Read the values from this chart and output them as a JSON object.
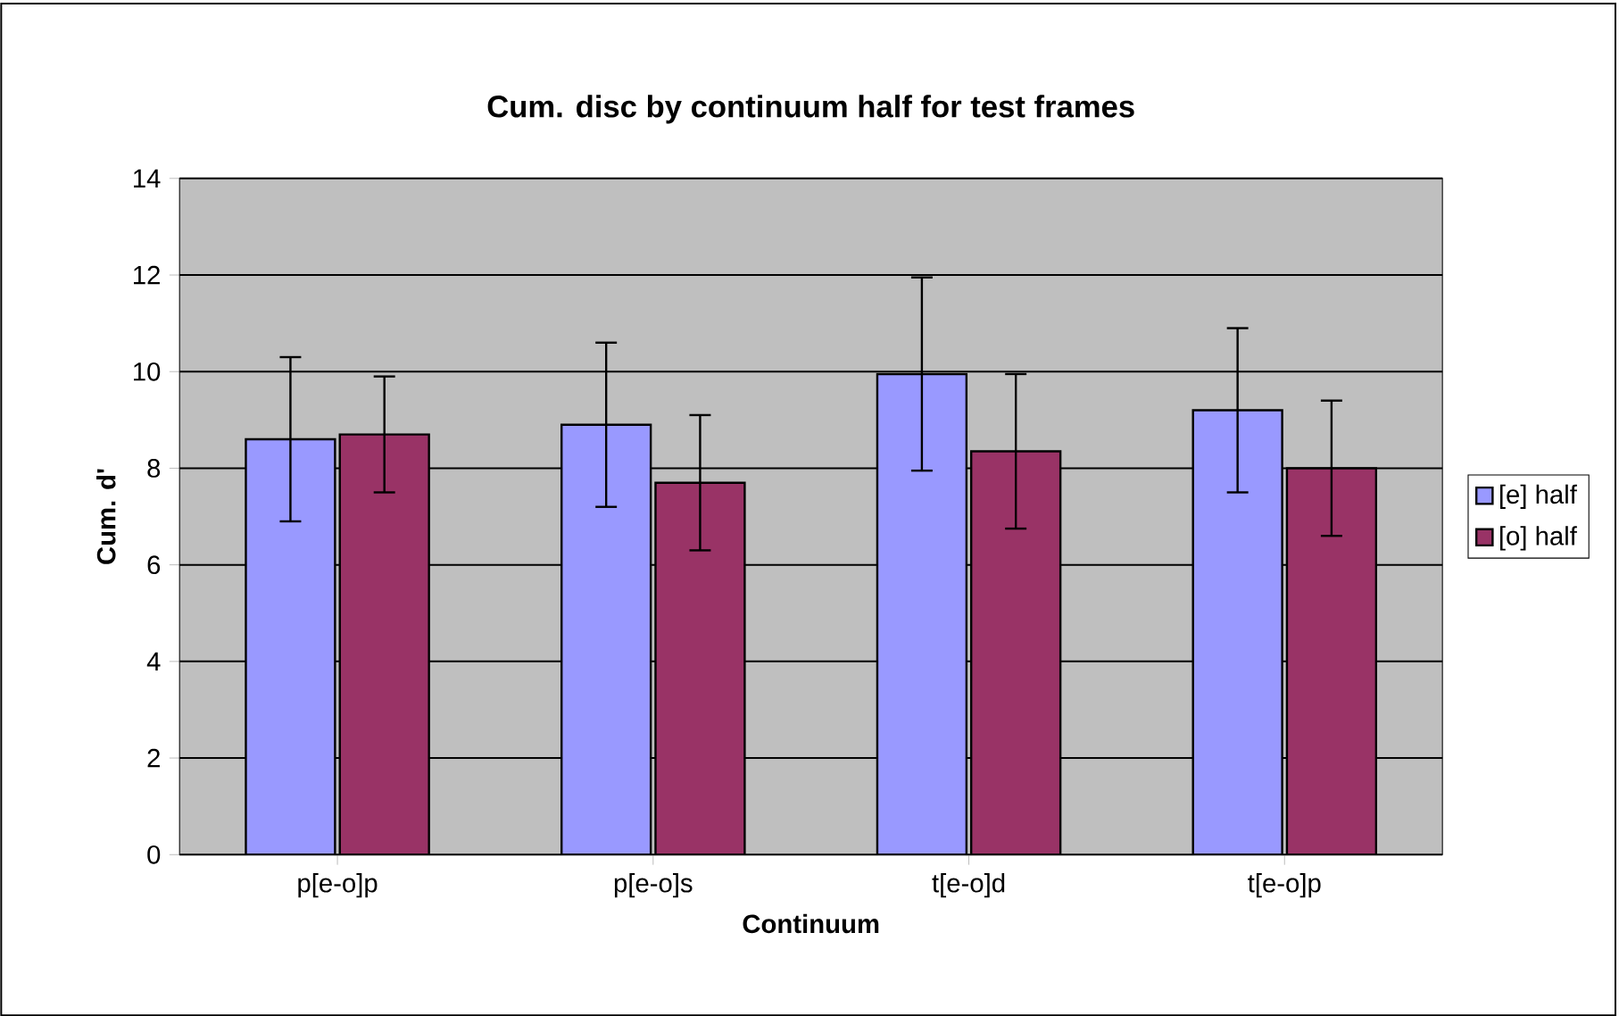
{
  "chart_data": {
    "type": "bar",
    "title": "Cum. disc by continuum half for test frames",
    "xlabel": "Continuum",
    "ylabel": "Cum. d'",
    "categories": [
      "p[e-o]p",
      "p[e-o]s",
      "t[e-o]d",
      "t[e-o]p"
    ],
    "series": [
      {
        "name": "[e] half",
        "color": "#9999ff",
        "values": [
          8.6,
          8.9,
          9.95,
          9.2
        ],
        "errors": [
          1.7,
          1.7,
          2.0,
          1.7
        ]
      },
      {
        "name": "[o] half",
        "color": "#993366",
        "values": [
          8.7,
          7.7,
          8.35,
          8.0
        ],
        "errors": [
          1.2,
          1.4,
          1.6,
          1.4
        ]
      }
    ],
    "ylim": [
      0,
      14
    ],
    "yticks": [
      0,
      2,
      4,
      6,
      8,
      10,
      12,
      14
    ],
    "grid": "y",
    "legend": "right"
  }
}
